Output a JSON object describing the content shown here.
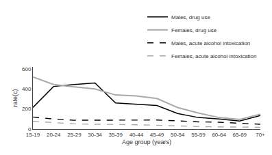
{
  "chart_data": {
    "type": "line",
    "xlabel": "Age group (years)",
    "ylabel": "rate(c)",
    "categories": [
      "15-19",
      "20-24",
      "25-29",
      "30-34",
      "35-39",
      "40-44",
      "45-49",
      "50-54",
      "55-59",
      "60-64",
      "65-69",
      "70+"
    ],
    "series": [
      {
        "name": "Males, drug use",
        "color": "#000000",
        "line_style": "solid",
        "values": [
          215,
          425,
          445,
          460,
          260,
          245,
          235,
          155,
          115,
          100,
          80,
          135
        ]
      },
      {
        "name": "Females, drug use",
        "color": "#aaaaaa",
        "line_style": "solid",
        "values": [
          520,
          445,
          420,
          400,
          340,
          330,
          305,
          215,
          160,
          115,
          95,
          148
        ]
      },
      {
        "name": "Males, acute alcohol intoxication",
        "color": "#000000",
        "line_style": "dashed",
        "values": [
          120,
          100,
          88,
          88,
          90,
          90,
          90,
          82,
          72,
          68,
          58,
          48
        ]
      },
      {
        "name": "Females, acute alcohol intoxication",
        "color": "#aaaaaa",
        "line_style": "dashed",
        "values": [
          78,
          63,
          52,
          48,
          48,
          43,
          38,
          30,
          25,
          22,
          18,
          18
        ]
      }
    ],
    "ylim": [
      0,
      620
    ],
    "yticks": [
      0,
      200,
      400,
      600
    ],
    "grid": false,
    "legend": "upper right"
  }
}
